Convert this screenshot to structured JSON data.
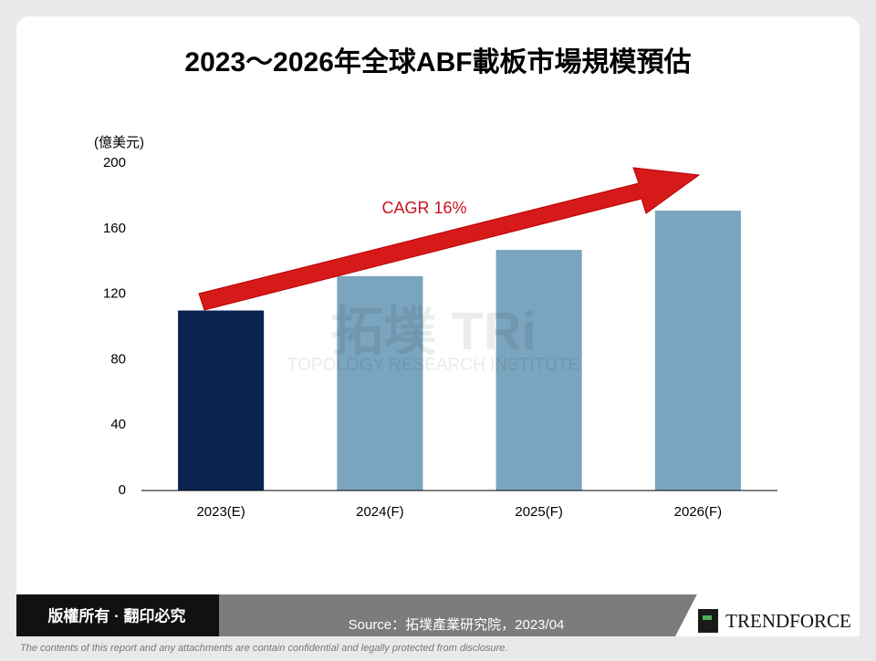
{
  "chart_data": {
    "type": "bar",
    "title": "2023～2026年全球ABF載板市場規模預估",
    "y_label": "(億美元)",
    "annotation": "CAGR 16%",
    "categories": [
      "2023(E)",
      "2024(F)",
      "2025(F)",
      "2026(F)"
    ],
    "values": [
      110,
      131,
      147,
      171
    ],
    "colors": [
      "#0b2452",
      "#7ba4bf",
      "#7ba4bf",
      "#7ba4bf"
    ],
    "ylim": [
      0,
      200
    ],
    "yticks": [
      0,
      40,
      80,
      120,
      160,
      200
    ],
    "grid": false
  },
  "watermark": {
    "logo": "拓墣 TRi",
    "name": "TOPOLOGY RESEARCH INSTITUTE"
  },
  "footer": {
    "copyright": "版權所有 · 翻印必究",
    "source": "Source：拓墣產業研究院，2023/04",
    "brand": "TRENDFORCE",
    "disclaimer": "The contents of this report and any attachments are contain confidential and legally protected from disclosure."
  }
}
